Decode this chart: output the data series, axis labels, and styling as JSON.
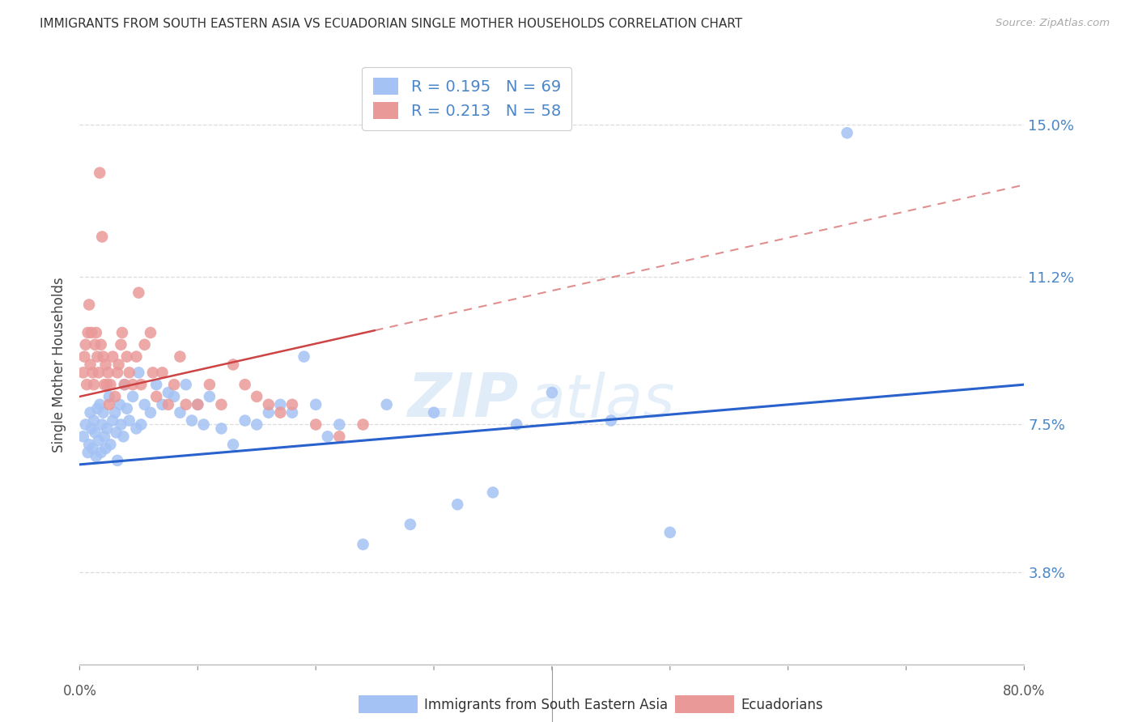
{
  "title": "IMMIGRANTS FROM SOUTH EASTERN ASIA VS ECUADORIAN SINGLE MOTHER HOUSEHOLDS CORRELATION CHART",
  "source": "Source: ZipAtlas.com",
  "ylabel": "Single Mother Households",
  "yticks": [
    3.8,
    7.5,
    11.2,
    15.0
  ],
  "ytick_labels": [
    "3.8%",
    "7.5%",
    "11.2%",
    "15.0%"
  ],
  "xlim": [
    0.0,
    80.0
  ],
  "ylim": [
    1.5,
    16.5
  ],
  "legend1_R": "0.195",
  "legend1_N": "69",
  "legend2_R": "0.213",
  "legend2_N": "58",
  "color_blue": "#a4c2f4",
  "color_pink": "#ea9999",
  "color_blue_line": "#2962cc",
  "color_pink_line": "#cc4444",
  "color_pink_dash": "#e06080",
  "color_text_blue": "#4a86c8",
  "color_grid": "#dddddd",
  "background_color": "#ffffff",
  "blue_scatter_x": [
    0.3,
    0.5,
    0.7,
    0.8,
    0.9,
    1.0,
    1.1,
    1.2,
    1.3,
    1.4,
    1.5,
    1.6,
    1.7,
    1.8,
    1.9,
    2.0,
    2.1,
    2.2,
    2.3,
    2.5,
    2.6,
    2.8,
    3.0,
    3.1,
    3.2,
    3.4,
    3.5,
    3.7,
    3.8,
    4.0,
    4.2,
    4.5,
    4.8,
    5.0,
    5.2,
    5.5,
    6.0,
    6.5,
    7.0,
    7.5,
    8.0,
    8.5,
    9.0,
    9.5,
    10.0,
    10.5,
    11.0,
    12.0,
    13.0,
    14.0,
    15.0,
    16.0,
    17.0,
    18.0,
    19.0,
    20.0,
    21.0,
    22.0,
    24.0,
    26.0,
    28.0,
    30.0,
    32.0,
    35.0,
    37.0,
    40.0,
    45.0,
    50.0,
    65.0
  ],
  "blue_scatter_y": [
    7.2,
    7.5,
    6.8,
    7.0,
    7.8,
    7.4,
    6.9,
    7.6,
    7.3,
    6.7,
    7.9,
    7.1,
    8.0,
    6.8,
    7.5,
    7.8,
    7.2,
    6.9,
    7.4,
    8.2,
    7.0,
    7.6,
    7.8,
    7.3,
    6.6,
    8.0,
    7.5,
    7.2,
    8.5,
    7.9,
    7.6,
    8.2,
    7.4,
    8.8,
    7.5,
    8.0,
    7.8,
    8.5,
    8.0,
    8.3,
    8.2,
    7.8,
    8.5,
    7.6,
    8.0,
    7.5,
    8.2,
    7.4,
    7.0,
    7.6,
    7.5,
    7.8,
    8.0,
    7.8,
    9.2,
    8.0,
    7.2,
    7.5,
    4.5,
    8.0,
    5.0,
    7.8,
    5.5,
    5.8,
    7.5,
    8.3,
    7.6,
    4.8,
    14.8
  ],
  "pink_scatter_x": [
    0.3,
    0.4,
    0.5,
    0.6,
    0.7,
    0.8,
    0.9,
    1.0,
    1.1,
    1.2,
    1.3,
    1.4,
    1.5,
    1.6,
    1.8,
    2.0,
    2.1,
    2.2,
    2.4,
    2.6,
    2.8,
    3.0,
    3.2,
    3.5,
    3.8,
    4.0,
    4.2,
    4.5,
    5.0,
    5.5,
    6.0,
    6.5,
    7.0,
    7.5,
    8.0,
    8.5,
    9.0,
    10.0,
    11.0,
    12.0,
    13.0,
    14.0,
    15.0,
    16.0,
    17.0,
    18.0,
    20.0,
    22.0,
    24.0,
    3.3,
    1.7,
    1.9,
    2.3,
    2.5,
    3.6,
    4.8,
    5.2,
    6.2
  ],
  "pink_scatter_y": [
    8.8,
    9.2,
    9.5,
    8.5,
    9.8,
    10.5,
    9.0,
    9.8,
    8.8,
    8.5,
    9.5,
    9.8,
    9.2,
    8.8,
    9.5,
    9.2,
    8.5,
    9.0,
    8.8,
    8.5,
    9.2,
    8.2,
    8.8,
    9.5,
    8.5,
    9.2,
    8.8,
    8.5,
    10.8,
    9.5,
    9.8,
    8.2,
    8.8,
    8.0,
    8.5,
    9.2,
    8.0,
    8.0,
    8.5,
    8.0,
    9.0,
    8.5,
    8.2,
    8.0,
    7.8,
    8.0,
    7.5,
    7.2,
    7.5,
    9.0,
    13.8,
    12.2,
    8.5,
    8.0,
    9.8,
    9.2,
    8.5,
    8.8
  ],
  "bottom_legend_blue": "Immigrants from South Eastern Asia",
  "bottom_legend_pink": "Ecuadorians",
  "watermark_zip": "ZIP",
  "watermark_atlas": "atlas"
}
